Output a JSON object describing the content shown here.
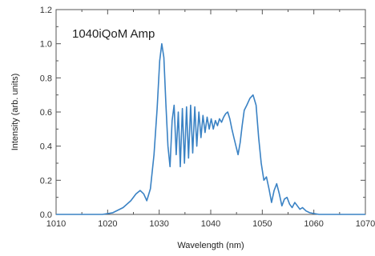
{
  "chart_data": {
    "type": "line",
    "title": "",
    "annotation": "1040iQoM Amp",
    "xlabel": "Wavelength (nm)",
    "ylabel": "Intensity (arb. units)",
    "xlim": [
      1010,
      1070
    ],
    "ylim": [
      0.0,
      1.2
    ],
    "xticks": [
      1010,
      1020,
      1030,
      1040,
      1050,
      1060,
      1070
    ],
    "yticks": [
      0.0,
      0.2,
      0.4,
      0.6,
      0.8,
      1.0,
      1.2
    ],
    "xtick_labels": [
      "1010",
      "1020",
      "1030",
      "1040",
      "1050",
      "1060",
      "1070"
    ],
    "ytick_labels": [
      "0.0",
      "0.2",
      "0.4",
      "0.6",
      "0.8",
      "1.0",
      "1.2"
    ],
    "grid": false,
    "line_color": "#3a82c4",
    "series": [
      {
        "x": [
          1010,
          1019,
          1021,
          1023,
          1024.5,
          1025.5,
          1026.3,
          1027,
          1027.6,
          1028.3,
          1029,
          1029.6,
          1030.1,
          1030.5,
          1030.9,
          1031.3,
          1031.7,
          1032.1,
          1032.5,
          1032.9,
          1033.3,
          1033.7,
          1034.1,
          1034.5,
          1034.9,
          1035.3,
          1035.7,
          1036.1,
          1036.5,
          1036.9,
          1037.3,
          1037.7,
          1038.1,
          1038.5,
          1038.9,
          1039.3,
          1039.7,
          1040.1,
          1040.5,
          1040.9,
          1041.3,
          1041.7,
          1042.1,
          1042.5,
          1042.9,
          1043.3,
          1043.7,
          1044.1,
          1044.5,
          1044.9,
          1045.3,
          1045.7,
          1046.1,
          1046.5,
          1047,
          1047.6,
          1048.2,
          1048.8,
          1049.3,
          1049.8,
          1050.3,
          1050.8,
          1051.3,
          1051.8,
          1052.3,
          1052.8,
          1053.3,
          1053.8,
          1054.3,
          1054.8,
          1055.3,
          1055.8,
          1056.3,
          1056.8,
          1057.3,
          1057.8,
          1058.5,
          1059.2,
          1060,
          1061,
          1070
        ],
        "y": [
          0.0,
          0.0,
          0.01,
          0.04,
          0.08,
          0.12,
          0.14,
          0.12,
          0.08,
          0.15,
          0.35,
          0.62,
          0.9,
          1.0,
          0.92,
          0.65,
          0.4,
          0.28,
          0.55,
          0.64,
          0.35,
          0.6,
          0.28,
          0.62,
          0.3,
          0.63,
          0.33,
          0.64,
          0.36,
          0.63,
          0.4,
          0.6,
          0.45,
          0.58,
          0.48,
          0.57,
          0.5,
          0.56,
          0.5,
          0.55,
          0.52,
          0.56,
          0.54,
          0.57,
          0.59,
          0.6,
          0.56,
          0.5,
          0.45,
          0.4,
          0.35,
          0.42,
          0.52,
          0.61,
          0.64,
          0.68,
          0.7,
          0.64,
          0.45,
          0.3,
          0.2,
          0.22,
          0.15,
          0.07,
          0.14,
          0.18,
          0.12,
          0.05,
          0.09,
          0.1,
          0.06,
          0.04,
          0.07,
          0.05,
          0.03,
          0.04,
          0.02,
          0.01,
          0.005,
          0.0,
          0.0
        ]
      }
    ]
  }
}
